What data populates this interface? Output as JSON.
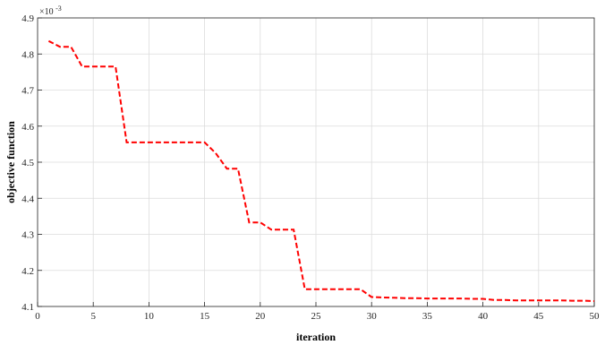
{
  "chart_data": {
    "type": "line",
    "title": "",
    "xlabel": "iteration",
    "ylabel": "objective function",
    "xlim": [
      0,
      50
    ],
    "ylim": [
      4.1,
      4.9
    ],
    "y_exponent_label": "×10",
    "y_exponent_power": "-3",
    "x_ticks": [
      "0",
      "5",
      "10",
      "15",
      "20",
      "25",
      "30",
      "35",
      "40",
      "45",
      "50"
    ],
    "y_ticks": [
      "4.1",
      "4.2",
      "4.3",
      "4.4",
      "4.5",
      "4.6",
      "4.7",
      "4.8",
      "4.9"
    ],
    "grid": true,
    "series": [
      {
        "color": "#ff0000",
        "line_style": "dashed",
        "x": [
          1,
          2,
          3,
          4,
          5,
          6,
          7,
          8,
          9,
          10,
          11,
          12,
          13,
          14,
          15,
          16,
          17,
          18,
          19,
          20,
          21,
          22,
          23,
          24,
          25,
          26,
          27,
          28,
          29,
          30,
          31,
          32,
          33,
          34,
          35,
          36,
          37,
          38,
          39,
          40,
          41,
          42,
          43,
          44,
          45,
          46,
          47,
          48,
          49,
          50
        ],
        "y": [
          4.836,
          4.82,
          4.82,
          4.765,
          4.765,
          4.765,
          4.765,
          4.555,
          4.555,
          4.555,
          4.555,
          4.555,
          4.555,
          4.555,
          4.555,
          4.525,
          4.482,
          4.482,
          4.333,
          4.333,
          4.313,
          4.313,
          4.313,
          4.148,
          4.148,
          4.148,
          4.148,
          4.148,
          4.148,
          4.126,
          4.125,
          4.124,
          4.123,
          4.123,
          4.122,
          4.122,
          4.122,
          4.122,
          4.121,
          4.121,
          4.118,
          4.118,
          4.117,
          4.117,
          4.117,
          4.117,
          4.117,
          4.116,
          4.116,
          4.115
        ]
      }
    ]
  }
}
